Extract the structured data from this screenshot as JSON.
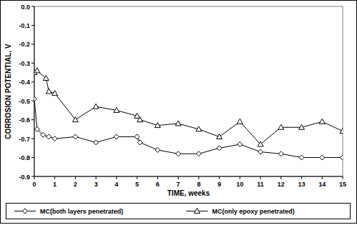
{
  "chart_data": {
    "type": "line",
    "x_label": "TIME, weeks",
    "y_label": "CORROSION POTENTIAL, V",
    "xlim": [
      0,
      15
    ],
    "xticks": [
      0,
      1,
      2,
      3,
      4,
      5,
      6,
      7,
      8,
      9,
      10,
      11,
      12,
      13,
      14,
      15
    ],
    "ylim": [
      -0.9,
      0
    ],
    "yticks": [
      {
        "value": 0,
        "label": "0.0"
      },
      -0.1,
      -0.2,
      -0.3,
      -0.4,
      -0.5,
      -0.6,
      -0.7,
      -0.8,
      -0.9
    ],
    "grid": false,
    "legend": "bottom",
    "series": [
      {
        "name": "MC(both layers penetrated)",
        "color": "#000000",
        "marker": "diamond",
        "line_style": "solid",
        "x": [
          0,
          0.14,
          0.43,
          0.71,
          1,
          2,
          3,
          4,
          5,
          5.14,
          6,
          7,
          8,
          9,
          10,
          11,
          12,
          13,
          14,
          15
        ],
        "values": [
          -0.49,
          -0.65,
          -0.68,
          -0.69,
          -0.7,
          -0.69,
          -0.72,
          -0.69,
          -0.69,
          -0.72,
          -0.76,
          -0.78,
          -0.78,
          -0.75,
          -0.73,
          -0.77,
          -0.78,
          -0.8,
          -0.8,
          -0.8
        ]
      },
      {
        "name": "MC(only epoxy penetrated)",
        "color": "#000000",
        "marker": "triangle",
        "line_style": "solid",
        "x": [
          0,
          0.14,
          0.57,
          0.71,
          1,
          2,
          3,
          4,
          5,
          5.14,
          6,
          7,
          8,
          9,
          10,
          11,
          12,
          13,
          14,
          15
        ],
        "values": [
          -0.35,
          -0.34,
          -0.38,
          -0.45,
          -0.46,
          -0.6,
          -0.53,
          -0.55,
          -0.58,
          -0.6,
          -0.63,
          -0.62,
          -0.65,
          -0.69,
          -0.61,
          -0.73,
          -0.64,
          -0.64,
          -0.61,
          -0.66
        ]
      }
    ]
  }
}
